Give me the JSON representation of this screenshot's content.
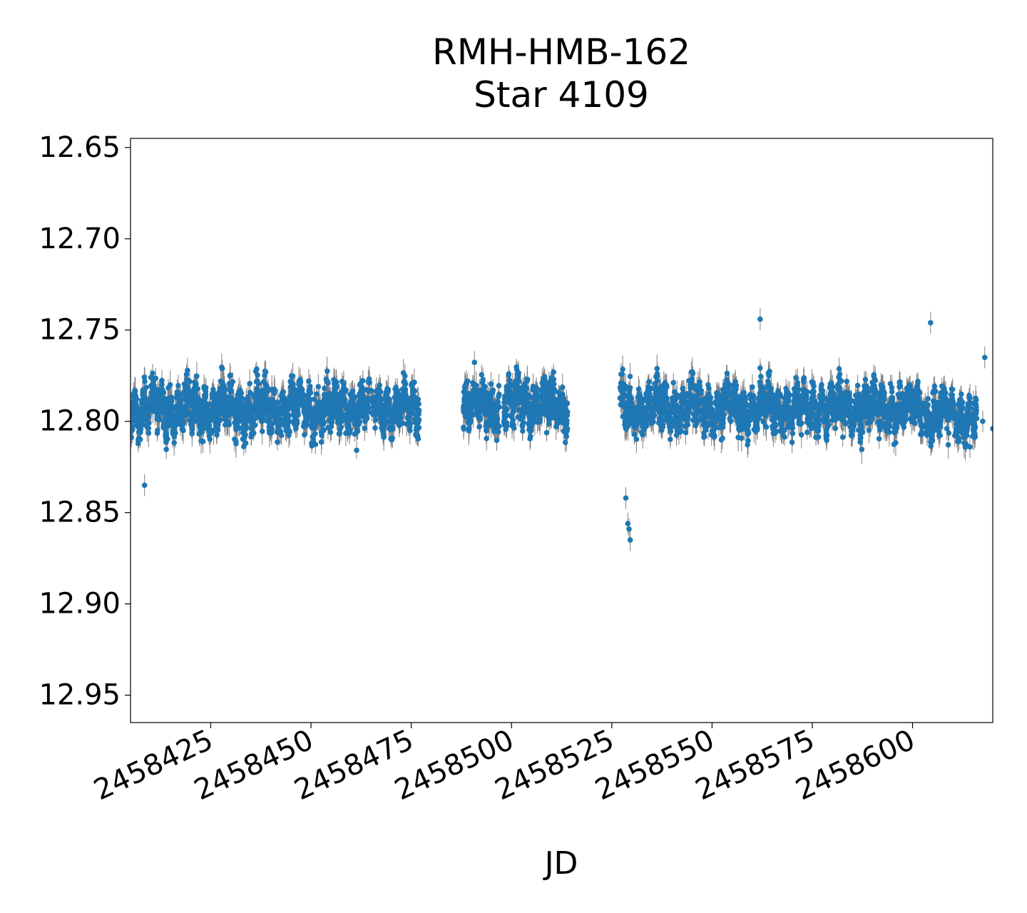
{
  "chart_data": {
    "type": "scatter",
    "title_lines": [
      "RMH-HMB-162",
      "Star 4109"
    ],
    "xlabel": "JD",
    "ylabel": "",
    "xlim": [
      2458405,
      2458620
    ],
    "ylim": [
      12.965,
      12.645
    ],
    "y_inverted": true,
    "x_ticks": [
      2458425,
      2458450,
      2458475,
      2458500,
      2458525,
      2458550,
      2458575,
      2458600
    ],
    "x_tick_labels": [
      "2458425",
      "2458450",
      "2458475",
      "2458500",
      "2458525",
      "2458550",
      "2458575",
      "2458600"
    ],
    "y_ticks": [
      12.65,
      12.7,
      12.75,
      12.8,
      12.85,
      12.9,
      12.95
    ],
    "y_tick_labels": [
      "12.65",
      "12.70",
      "12.75",
      "12.80",
      "12.85",
      "12.90",
      "12.95"
    ],
    "grid": false,
    "marker_color": "#1f77b4",
    "errorbar_color": "#808080",
    "observing_segments": [
      {
        "start": 2458405,
        "end": 2458477,
        "center": 12.793,
        "spread": 0.022
      },
      {
        "start": 2458488,
        "end": 2458497,
        "center": 12.792,
        "spread": 0.024
      },
      {
        "start": 2458498,
        "end": 2458508,
        "center": 12.79,
        "spread": 0.022
      },
      {
        "start": 2458508,
        "end": 2458514,
        "center": 12.792,
        "spread": 0.022
      },
      {
        "start": 2458527,
        "end": 2458603,
        "center": 12.793,
        "spread": 0.022
      },
      {
        "start": 2458603,
        "end": 2458616,
        "center": 12.797,
        "spread": 0.02
      }
    ],
    "notable_points": [
      {
        "x": 2458528.5,
        "y": 12.842
      },
      {
        "x": 2458529.0,
        "y": 12.856
      },
      {
        "x": 2458529.3,
        "y": 12.859
      },
      {
        "x": 2458529.6,
        "y": 12.865
      },
      {
        "x": 2458408.5,
        "y": 12.835
      },
      {
        "x": 2458562.0,
        "y": 12.744
      },
      {
        "x": 2458604.5,
        "y": 12.746
      },
      {
        "x": 2458614.0,
        "y": 12.79
      },
      {
        "x": 2458614.3,
        "y": 12.814
      },
      {
        "x": 2458617.5,
        "y": 12.8
      },
      {
        "x": 2458618.0,
        "y": 12.765
      },
      {
        "x": 2458620.0,
        "y": 12.804
      }
    ]
  }
}
